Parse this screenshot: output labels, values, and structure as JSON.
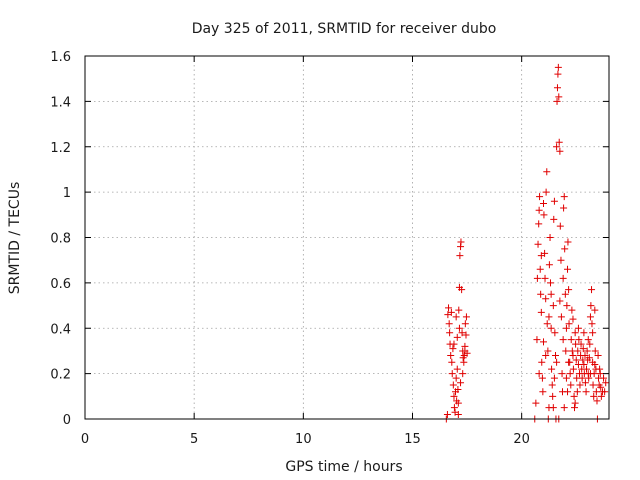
{
  "chart_data": {
    "type": "scatter",
    "title": "Day 325 of 2011, SRMTID for receiver dubo",
    "xlabel": "GPS time / hours",
    "ylabel": "SRMTID / TECUs",
    "xlim": [
      0,
      24
    ],
    "ylim": [
      0,
      1.6
    ],
    "xticks": [
      "0",
      "5",
      "10",
      "15",
      "20"
    ],
    "yticks": [
      "0",
      "0.2",
      "0.4",
      "0.6",
      "0.8",
      "1",
      "1.2",
      "1.4",
      "1.6"
    ],
    "xtick_values": [
      0,
      5,
      10,
      15,
      20
    ],
    "ytick_values": [
      0,
      0.2,
      0.4,
      0.6,
      0.8,
      1.0,
      1.2,
      1.4,
      1.6
    ],
    "grid": true,
    "marker": "plus",
    "color": "#e00000",
    "series": [
      {
        "points": [
          [
            16.55,
            0.0
          ],
          [
            16.6,
            0.02
          ],
          [
            16.62,
            0.46
          ],
          [
            16.65,
            0.49
          ],
          [
            16.68,
            0.42
          ],
          [
            16.7,
            0.38
          ],
          [
            16.72,
            0.33
          ],
          [
            16.75,
            0.28
          ],
          [
            16.78,
            0.47
          ],
          [
            16.8,
            0.25
          ],
          [
            16.82,
            0.2
          ],
          [
            16.85,
            0.31
          ],
          [
            16.87,
            0.15
          ],
          [
            16.9,
            0.1
          ],
          [
            16.92,
            0.05
          ],
          [
            16.95,
            0.03
          ],
          [
            16.97,
            0.12
          ],
          [
            17.0,
            0.18
          ],
          [
            17.02,
            0.08
          ],
          [
            17.05,
            0.22
          ],
          [
            17.08,
            0.13
          ],
          [
            17.1,
            0.02
          ],
          [
            17.12,
            0.48
          ],
          [
            17.15,
            0.58
          ],
          [
            17.17,
            0.72
          ],
          [
            17.2,
            0.76
          ],
          [
            17.22,
            0.78
          ],
          [
            17.25,
            0.57
          ],
          [
            17.27,
            0.38
          ],
          [
            17.3,
            0.3
          ],
          [
            17.32,
            0.27
          ],
          [
            17.35,
            0.25
          ],
          [
            17.37,
            0.28
          ],
          [
            17.4,
            0.32
          ],
          [
            17.42,
            0.42
          ],
          [
            17.45,
            0.37
          ],
          [
            17.47,
            0.45
          ],
          [
            17.5,
            0.29
          ],
          [
            17.2,
            0.16
          ],
          [
            17.15,
            0.4
          ],
          [
            17.05,
            0.36
          ],
          [
            17.3,
            0.2
          ],
          [
            17.1,
            0.07
          ],
          [
            17.0,
            0.45
          ],
          [
            16.9,
            0.33
          ],
          [
            17.4,
            0.3
          ],
          [
            20.6,
            0.0
          ],
          [
            20.65,
            0.07
          ],
          [
            20.7,
            0.35
          ],
          [
            20.72,
            0.62
          ],
          [
            20.75,
            0.77
          ],
          [
            20.78,
            0.86
          ],
          [
            20.8,
            0.92
          ],
          [
            20.82,
            0.98
          ],
          [
            20.85,
            0.66
          ],
          [
            20.87,
            0.55
          ],
          [
            20.9,
            0.47
          ],
          [
            20.92,
            0.25
          ],
          [
            20.95,
            0.18
          ],
          [
            20.97,
            0.12
          ],
          [
            21.0,
            0.95
          ],
          [
            21.02,
            0.9
          ],
          [
            21.05,
            0.73
          ],
          [
            21.07,
            0.62
          ],
          [
            21.1,
            0.53
          ],
          [
            21.12,
            1.0
          ],
          [
            21.15,
            1.09
          ],
          [
            21.17,
            0.42
          ],
          [
            21.2,
            0.3
          ],
          [
            21.22,
            0.0
          ],
          [
            21.25,
            0.05
          ],
          [
            21.27,
            0.68
          ],
          [
            21.3,
            0.8
          ],
          [
            21.32,
            0.6
          ],
          [
            21.35,
            0.4
          ],
          [
            21.37,
            0.22
          ],
          [
            21.4,
            0.15
          ],
          [
            21.42,
            0.1
          ],
          [
            21.45,
            0.5
          ],
          [
            21.47,
            0.88
          ],
          [
            21.5,
            0.96
          ],
          [
            21.52,
            0.38
          ],
          [
            21.55,
            0.28
          ],
          [
            21.57,
            0.0
          ],
          [
            21.6,
            1.2
          ],
          [
            21.62,
            1.4
          ],
          [
            21.64,
            1.46
          ],
          [
            21.66,
            1.52
          ],
          [
            21.68,
            1.55
          ],
          [
            21.7,
            1.42
          ],
          [
            21.72,
            1.22
          ],
          [
            21.75,
            1.18
          ],
          [
            21.77,
            0.85
          ],
          [
            21.8,
            0.7
          ],
          [
            21.82,
            0.45
          ],
          [
            21.85,
            0.2
          ],
          [
            21.87,
            0.12
          ],
          [
            21.9,
            0.62
          ],
          [
            21.92,
            0.93
          ],
          [
            21.95,
            0.98
          ],
          [
            21.97,
            0.75
          ],
          [
            22.0,
            0.55
          ],
          [
            22.02,
            0.3
          ],
          [
            22.05,
            0.18
          ],
          [
            22.07,
            0.5
          ],
          [
            22.1,
            0.66
          ],
          [
            22.12,
            0.78
          ],
          [
            22.15,
            0.57
          ],
          [
            22.17,
            0.42
          ],
          [
            22.2,
            0.25
          ],
          [
            22.22,
            0.2
          ],
          [
            22.25,
            0.15
          ],
          [
            22.27,
            0.35
          ],
          [
            22.3,
            0.48
          ],
          [
            22.32,
            0.3
          ],
          [
            22.35,
            0.28
          ],
          [
            22.37,
            0.22
          ],
          [
            22.4,
            0.1
          ],
          [
            22.42,
            0.05
          ],
          [
            22.45,
            0.38
          ],
          [
            22.47,
            0.33
          ],
          [
            22.5,
            0.26
          ],
          [
            22.52,
            0.18
          ],
          [
            22.55,
            0.12
          ],
          [
            22.57,
            0.3
          ],
          [
            22.6,
            0.24
          ],
          [
            22.62,
            0.35
          ],
          [
            22.65,
            0.2
          ],
          [
            22.67,
            0.15
          ],
          [
            22.7,
            0.28
          ],
          [
            22.72,
            0.33
          ],
          [
            22.75,
            0.22
          ],
          [
            22.77,
            0.18
          ],
          [
            22.8,
            0.26
          ],
          [
            22.82,
            0.31
          ],
          [
            22.85,
            0.24
          ],
          [
            22.87,
            0.2
          ],
          [
            22.9,
            0.28
          ],
          [
            22.92,
            0.16
          ],
          [
            22.95,
            0.12
          ],
          [
            22.97,
            0.22
          ],
          [
            23.0,
            0.3
          ],
          [
            23.02,
            0.26
          ],
          [
            23.05,
            0.2
          ],
          [
            23.07,
            0.18
          ],
          [
            23.1,
            0.27
          ],
          [
            23.12,
            0.33
          ],
          [
            23.15,
            0.45
          ],
          [
            23.17,
            0.5
          ],
          [
            23.2,
            0.57
          ],
          [
            23.22,
            0.42
          ],
          [
            23.25,
            0.25
          ],
          [
            23.27,
            0.15
          ],
          [
            23.3,
            0.1
          ],
          [
            23.32,
            0.2
          ],
          [
            23.35,
            0.24
          ],
          [
            23.37,
            0.3
          ],
          [
            23.4,
            0.22
          ],
          [
            23.42,
            0.12
          ],
          [
            23.45,
            0.08
          ],
          [
            23.47,
            0.0
          ],
          [
            23.5,
            0.28
          ],
          [
            23.52,
            0.18
          ],
          [
            23.55,
            0.15
          ],
          [
            23.57,
            0.22
          ],
          [
            23.6,
            0.2
          ],
          [
            23.62,
            0.14
          ],
          [
            23.65,
            0.1
          ],
          [
            23.7,
            0.12
          ],
          [
            23.75,
            0.18
          ],
          [
            23.8,
            0.12
          ],
          [
            23.85,
            0.16
          ],
          [
            21.9,
            0.35
          ],
          [
            22.05,
            0.4
          ],
          [
            22.15,
            0.25
          ],
          [
            21.6,
            0.25
          ],
          [
            21.35,
            0.55
          ],
          [
            21.1,
            0.28
          ],
          [
            20.9,
            0.72
          ],
          [
            21.25,
            0.45
          ],
          [
            22.35,
            0.44
          ],
          [
            22.6,
            0.4
          ],
          [
            21.75,
            0.52
          ],
          [
            21.5,
            0.18
          ],
          [
            23.35,
            0.48
          ],
          [
            23.15,
            0.2
          ],
          [
            22.85,
            0.38
          ],
          [
            22.1,
            0.12
          ],
          [
            21.95,
            0.05
          ],
          [
            20.8,
            0.2
          ],
          [
            21.0,
            0.34
          ],
          [
            21.45,
            0.05
          ],
          [
            21.7,
            0.0
          ],
          [
            22.45,
            0.07
          ],
          [
            23.05,
            0.35
          ],
          [
            23.25,
            0.38
          ]
        ]
      }
    ]
  }
}
